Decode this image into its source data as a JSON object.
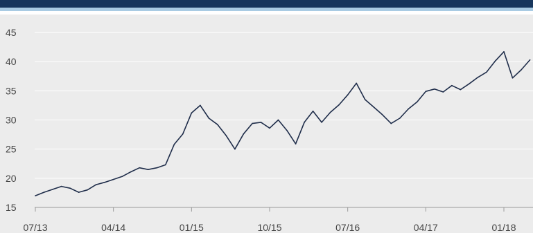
{
  "header": {
    "title": "",
    "bar_color": "#17365d",
    "stripe_color": "#a9cbe3"
  },
  "chart_data": {
    "type": "line",
    "title": "",
    "xlabel": "",
    "ylabel": "",
    "ylim": [
      15,
      45
    ],
    "yticks": [
      15,
      20,
      25,
      30,
      35,
      40,
      45
    ],
    "xticks": [
      "07/13",
      "04/14",
      "01/15",
      "10/15",
      "07/16",
      "04/17",
      "01/18"
    ],
    "grid": "horizontal",
    "line_color": "#1f2d4a",
    "series": [
      {
        "x": [
          "2013-07",
          "2013-08",
          "2013-09",
          "2013-10",
          "2013-11",
          "2013-12",
          "2014-01",
          "2014-02",
          "2014-03",
          "2014-04",
          "2014-05",
          "2014-06",
          "2014-07",
          "2014-08",
          "2014-09",
          "2014-10",
          "2014-11",
          "2014-12",
          "2015-01",
          "2015-02",
          "2015-03",
          "2015-04",
          "2015-05",
          "2015-06",
          "2015-07",
          "2015-08",
          "2015-09",
          "2015-10",
          "2015-11",
          "2015-12",
          "2016-01",
          "2016-02",
          "2016-03",
          "2016-04",
          "2016-05",
          "2016-06",
          "2016-07",
          "2016-08",
          "2016-09",
          "2016-10",
          "2016-11",
          "2016-12",
          "2017-01",
          "2017-02",
          "2017-03",
          "2017-04",
          "2017-05",
          "2017-06",
          "2017-07",
          "2017-08",
          "2017-09",
          "2017-10",
          "2017-11",
          "2017-12",
          "2018-01",
          "2018-02",
          "2018-03",
          "2018-04"
        ],
        "y": [
          17.0,
          17.6,
          18.1,
          18.6,
          18.3,
          17.6,
          18.0,
          18.9,
          19.3,
          19.8,
          20.3,
          21.1,
          21.8,
          21.5,
          21.8,
          22.3,
          25.8,
          27.6,
          31.2,
          32.5,
          30.3,
          29.2,
          27.3,
          25.0,
          27.6,
          29.4,
          29.6,
          28.6,
          30.0,
          28.2,
          25.9,
          29.6,
          31.5,
          29.6,
          31.3,
          32.6,
          34.3,
          36.3,
          33.5,
          32.2,
          30.9,
          29.4,
          30.3,
          31.9,
          33.1,
          34.9,
          35.3,
          34.8,
          35.9,
          35.2,
          36.2,
          37.3,
          38.2,
          40.1,
          41.7,
          37.2,
          38.6,
          40.3
        ]
      }
    ]
  }
}
